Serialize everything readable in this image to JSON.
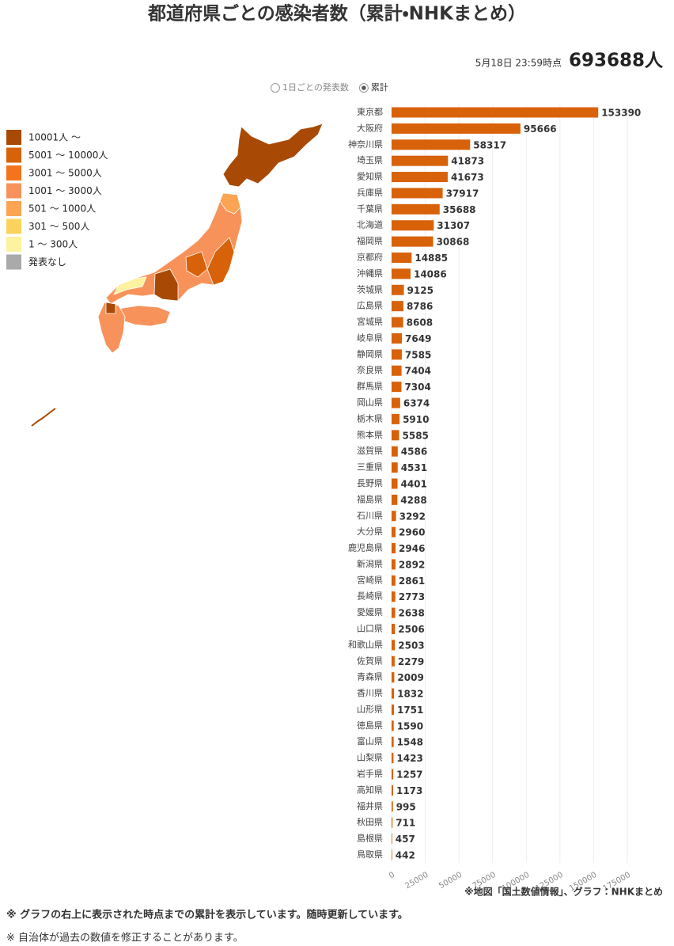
{
  "header": {
    "title": "都道府県ごとの感染者数（累計・NHKまとめ）",
    "timestamp": "5月18日 23:59時点",
    "total": "693688人"
  },
  "controls": {
    "options": [
      "1日ごとの発表数",
      "累計"
    ],
    "selected": 1
  },
  "map_legend": {
    "items": [
      {
        "label": "10001人 ～",
        "color": "#a84a05"
      },
      {
        "label": "5001 ～ 10000人",
        "color": "#d8620a"
      },
      {
        "label": "3001 ～ 5000人",
        "color": "#f5731c"
      },
      {
        "label": "1001 ～ 3000人",
        "color": "#f7935a"
      },
      {
        "label": "501 ～ 1000人",
        "color": "#fba552"
      },
      {
        "label": "301 ～ 500人",
        "color": "#fbd35c"
      },
      {
        "label": "1 ～ 300人",
        "color": "#fdf29e"
      },
      {
        "label": "発表なし",
        "color": "#aaaaaa"
      }
    ]
  },
  "chart_data": {
    "type": "bar",
    "orientation": "horizontal",
    "color": "#d8620a",
    "categories": [
      "東京都",
      "大阪府",
      "神奈川県",
      "埼玉県",
      "愛知県",
      "兵庫県",
      "千葉県",
      "北海道",
      "福岡県",
      "京都府",
      "沖縄県",
      "茨城県",
      "広島県",
      "宮城県",
      "岐阜県",
      "静岡県",
      "奈良県",
      "群馬県",
      "岡山県",
      "栃木県",
      "熊本県",
      "滋賀県",
      "三重県",
      "長野県",
      "福島県",
      "石川県",
      "大分県",
      "鹿児島県",
      "新潟県",
      "宮崎県",
      "長崎県",
      "愛媛県",
      "山口県",
      "和歌山県",
      "佐賀県",
      "青森県",
      "香川県",
      "山形県",
      "徳島県",
      "富山県",
      "山梨県",
      "岩手県",
      "高知県",
      "福井県",
      "秋田県",
      "島根県",
      "鳥取県"
    ],
    "values": [
      153390,
      95666,
      58317,
      41873,
      41673,
      37917,
      35688,
      31307,
      30868,
      14885,
      14086,
      9125,
      8786,
      8608,
      7649,
      7585,
      7404,
      7304,
      6374,
      5910,
      5585,
      4586,
      4531,
      4401,
      4288,
      3292,
      2960,
      2946,
      2892,
      2861,
      2773,
      2638,
      2506,
      2503,
      2279,
      2009,
      1832,
      1751,
      1590,
      1548,
      1423,
      1257,
      1173,
      995,
      711,
      457,
      442
    ],
    "xlim": [
      0,
      175000
    ],
    "xticks": [
      0,
      25000,
      50000,
      75000,
      100000,
      125000,
      150000,
      175000
    ],
    "grid": true
  },
  "source": "※地図「国土数値情報」、グラフ：NHKまとめ",
  "notes": [
    "※ グラフの右上に表示された時点までの累計を表示しています。随時更新しています。",
    "※ 自治体が過去の数値を修正することがあります。"
  ]
}
